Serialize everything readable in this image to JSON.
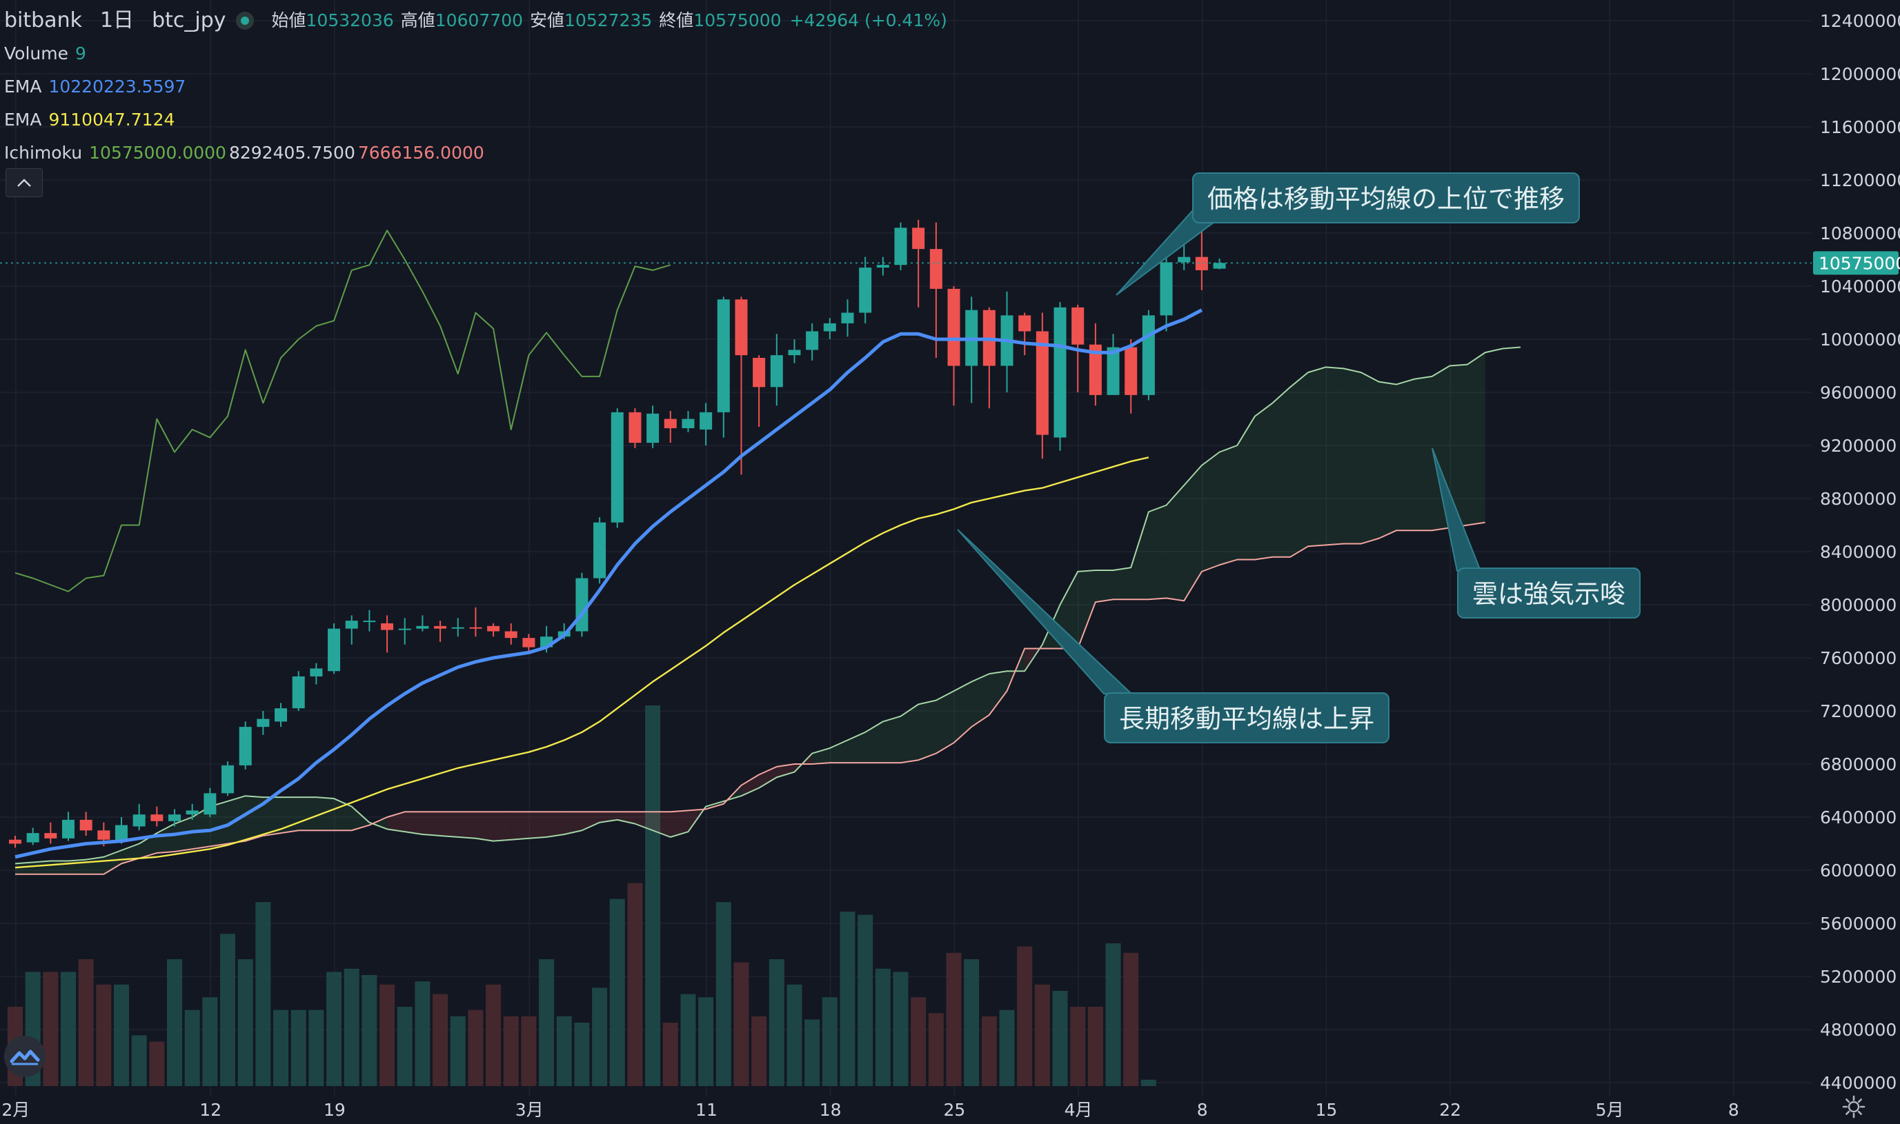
{
  "header": {
    "exchange": "bitbank",
    "interval": "1日",
    "symbol": "btc_jpy",
    "ohlc": [
      {
        "label": "始値",
        "value": "10532036"
      },
      {
        "label": "高値",
        "value": "10607700"
      },
      {
        "label": "安値",
        "value": "10527235"
      },
      {
        "label": "終値",
        "value": "10575000"
      }
    ],
    "change": "+42964 (+0.41%)"
  },
  "indicators": [
    {
      "name": "Volume",
      "values": [
        "9"
      ],
      "colors": [
        "#26a69a"
      ]
    },
    {
      "name": "EMA",
      "values": [
        "10220223.5597"
      ],
      "colors": [
        "#4d8ef5"
      ]
    },
    {
      "name": "EMA",
      "values": [
        "9110047.7124"
      ],
      "colors": [
        "#f3e94b"
      ]
    },
    {
      "name": "Ichimoku",
      "values": [
        "10575000.0000",
        "8292405.7500",
        "7666156.0000"
      ],
      "colors": [
        "#6ab04c",
        "#d1d4dc",
        "#f08080"
      ]
    }
  ],
  "colors": {
    "up": "#26a69a",
    "down": "#ef5350",
    "ema_fast": "#4d8ef5",
    "ema_slow": "#f3e94b",
    "lagging": "#5f9e4a",
    "span_a": "#a5d6a7",
    "span_b": "#f3a6a0",
    "background": "#131722",
    "grid": "#1f2330",
    "callout": "#1f5c6a"
  },
  "annotations": [
    {
      "text": "価格は移動平均線の上位で推移"
    },
    {
      "text": "雲は強気示唆"
    },
    {
      "text": "長期移動平均線は上昇"
    }
  ],
  "chart_data": {
    "type": "candlestick",
    "price_axis": {
      "min": 4400000,
      "max": 12400000,
      "tick_labels": [
        "12400000",
        "12000000",
        "11600000",
        "11200000",
        "10800000",
        "10400000",
        "10000000",
        "9600000",
        "9200000",
        "8800000",
        "8400000",
        "8000000",
        "7600000",
        "7200000",
        "6800000",
        "6400000",
        "6000000",
        "5600000",
        "5200000",
        "4800000",
        "4400000"
      ],
      "last_price_label": "10575000",
      "last_price": 10575000
    },
    "time_axis": {
      "labels": [
        "2月",
        "12",
        "19",
        "3月",
        "11",
        "18",
        "25",
        "4月",
        "8",
        "15",
        "22",
        "5月",
        "8"
      ],
      "label_day_index": [
        0,
        11,
        18,
        29,
        39,
        46,
        53,
        60,
        67,
        74,
        81,
        90,
        97
      ],
      "first_day": "2021-02-01",
      "visible_days_before_first": 6,
      "visible_days_total": 104
    },
    "candles": [
      [
        6230000,
        6200000,
        6260000,
        6170000
      ],
      [
        6210000,
        6280000,
        6320000,
        6190000
      ],
      [
        6280000,
        6240000,
        6360000,
        6200000
      ],
      [
        6240000,
        6380000,
        6440000,
        6220000
      ],
      [
        6380000,
        6300000,
        6440000,
        6260000
      ],
      [
        6300000,
        6230000,
        6360000,
        6180000
      ],
      [
        6230000,
        6340000,
        6400000,
        6200000
      ],
      [
        6330000,
        6420000,
        6500000,
        6300000
      ],
      [
        6420000,
        6370000,
        6480000,
        6330000
      ],
      [
        6370000,
        6420000,
        6460000,
        6330000
      ],
      [
        6420000,
        6450000,
        6500000,
        6380000
      ],
      [
        6420000,
        6580000,
        6620000,
        6400000
      ],
      [
        6580000,
        6790000,
        6820000,
        6560000
      ],
      [
        6790000,
        7080000,
        7120000,
        6760000
      ],
      [
        7080000,
        7140000,
        7200000,
        7020000
      ],
      [
        7120000,
        7220000,
        7260000,
        7080000
      ],
      [
        7220000,
        7460000,
        7500000,
        7200000
      ],
      [
        7460000,
        7520000,
        7560000,
        7400000
      ],
      [
        7500000,
        7820000,
        7860000,
        7480000
      ],
      [
        7820000,
        7880000,
        7920000,
        7700000
      ],
      [
        7880000,
        7880000,
        7960000,
        7800000
      ],
      [
        7860000,
        7810000,
        7920000,
        7640000
      ],
      [
        7810000,
        7820000,
        7900000,
        7700000
      ],
      [
        7820000,
        7840000,
        7920000,
        7800000
      ],
      [
        7840000,
        7820000,
        7880000,
        7720000
      ],
      [
        7820000,
        7830000,
        7900000,
        7760000
      ],
      [
        7830000,
        7820000,
        7980000,
        7760000
      ],
      [
        7840000,
        7800000,
        7860000,
        7760000
      ],
      [
        7800000,
        7750000,
        7860000,
        7700000
      ],
      [
        7750000,
        7680000,
        7780000,
        7640000
      ],
      [
        7680000,
        7760000,
        7840000,
        7640000
      ],
      [
        7760000,
        7800000,
        7860000,
        7740000
      ],
      [
        7800000,
        8200000,
        8240000,
        7760000
      ],
      [
        8200000,
        8620000,
        8660000,
        8160000
      ],
      [
        8620000,
        9450000,
        9480000,
        8580000
      ],
      [
        9450000,
        9220000,
        9480000,
        9180000
      ],
      [
        9220000,
        9440000,
        9500000,
        9180000
      ],
      [
        9400000,
        9330000,
        9460000,
        9220000
      ],
      [
        9330000,
        9400000,
        9460000,
        9300000
      ],
      [
        9320000,
        9450000,
        9520000,
        9200000
      ],
      [
        9450000,
        10300000,
        10320000,
        9260000
      ],
      [
        10300000,
        9880000,
        10320000,
        8980000
      ],
      [
        9860000,
        9640000,
        9880000,
        9340000
      ],
      [
        9640000,
        9880000,
        10040000,
        9500000
      ],
      [
        9880000,
        9920000,
        10000000,
        9820000
      ],
      [
        9920000,
        10060000,
        10120000,
        9840000
      ],
      [
        10060000,
        10120000,
        10160000,
        10000000
      ],
      [
        10120000,
        10200000,
        10300000,
        10020000
      ],
      [
        10200000,
        10540000,
        10620000,
        10120000
      ],
      [
        10540000,
        10560000,
        10620000,
        10480000
      ],
      [
        10560000,
        10840000,
        10880000,
        10520000
      ],
      [
        10840000,
        10680000,
        10900000,
        10240000
      ],
      [
        10680000,
        10380000,
        10880000,
        9860000
      ],
      [
        10380000,
        9800000,
        10400000,
        9500000
      ],
      [
        9800000,
        10220000,
        10320000,
        9520000
      ],
      [
        10220000,
        9800000,
        10240000,
        9480000
      ],
      [
        9800000,
        10180000,
        10360000,
        9600000
      ],
      [
        10180000,
        10060000,
        10200000,
        9880000
      ],
      [
        10060000,
        9280000,
        10200000,
        9100000
      ],
      [
        9260000,
        10240000,
        10280000,
        9160000
      ],
      [
        10240000,
        9960000,
        10260000,
        9600000
      ],
      [
        9960000,
        9580000,
        10120000,
        9500000
      ],
      [
        9580000,
        9940000,
        10040000,
        9620000
      ],
      [
        9940000,
        9580000,
        10000000,
        9440000
      ],
      [
        9580000,
        10180000,
        10220000,
        9540000
      ],
      [
        10180000,
        10580000,
        10620000,
        10060000
      ],
      [
        10580000,
        10620000,
        10760000,
        10520000
      ],
      [
        10620000,
        10520000,
        10840000,
        10370000
      ],
      [
        10532036,
        10575000,
        10607700,
        10527235
      ]
    ],
    "volume": [
      25,
      36,
      36,
      36,
      40,
      32,
      32,
      16,
      14,
      40,
      24,
      28,
      48,
      40,
      58,
      24,
      24,
      24,
      36,
      37,
      35,
      32,
      25,
      33,
      29,
      22,
      24,
      32,
      22,
      22,
      40,
      22,
      20,
      31,
      59,
      64,
      120,
      20,
      29,
      28,
      58,
      39,
      22,
      40,
      32,
      21,
      28,
      55,
      54,
      37,
      36,
      28,
      23,
      42,
      40,
      22,
      24,
      44,
      32,
      30,
      25,
      25,
      45,
      42,
      2
    ],
    "ema_fast": [
      6100000,
      6130000,
      6160000,
      6180000,
      6200000,
      6210000,
      6220000,
      6240000,
      6260000,
      6270000,
      6290000,
      6300000,
      6340000,
      6420000,
      6500000,
      6600000,
      6690000,
      6810000,
      6910000,
      7020000,
      7140000,
      7240000,
      7330000,
      7410000,
      7470000,
      7530000,
      7570000,
      7600000,
      7620000,
      7640000,
      7680000,
      7770000,
      7930000,
      8110000,
      8300000,
      8460000,
      8590000,
      8700000,
      8800000,
      8900000,
      9000000,
      9120000,
      9220000,
      9320000,
      9420000,
      9520000,
      9620000,
      9750000,
      9860000,
      9980000,
      10040000,
      10040000,
      10000000,
      10000000,
      10000000,
      10000000,
      9990000,
      9970000,
      9960000,
      9950000,
      9920000,
      9900000,
      9900000,
      9950000,
      10030000,
      10100000,
      10150000,
      10220000
    ],
    "ema_slow": [
      6020000,
      6030000,
      6040000,
      6050000,
      6060000,
      6070000,
      6080000,
      6090000,
      6100000,
      6120000,
      6140000,
      6160000,
      6190000,
      6230000,
      6270000,
      6310000,
      6360000,
      6410000,
      6460000,
      6510000,
      6560000,
      6610000,
      6650000,
      6690000,
      6730000,
      6770000,
      6800000,
      6830000,
      6860000,
      6890000,
      6930000,
      6980000,
      7040000,
      7120000,
      7220000,
      7320000,
      7420000,
      7510000,
      7600000,
      7690000,
      7790000,
      7880000,
      7970000,
      8060000,
      8150000,
      8230000,
      8310000,
      8390000,
      8470000,
      8540000,
      8600000,
      8650000,
      8680000,
      8720000,
      8770000,
      8800000,
      8830000,
      8860000,
      8880000,
      8920000,
      8960000,
      9000000,
      9040000,
      9080000,
      9110000
    ],
    "lagging": [
      8240000,
      8200000,
      8150000,
      8100000,
      8200000,
      8220000,
      8600000,
      8600000,
      9400000,
      9150000,
      9320000,
      9260000,
      9420000,
      9920000,
      9520000,
      9860000,
      10000000,
      10100000,
      10140000,
      10520000,
      10560000,
      10820000,
      10600000,
      10360000,
      10100000,
      9740000,
      10200000,
      10080000,
      9320000,
      9880000,
      10050000,
      9880000,
      9720000,
      9720000,
      10220000,
      10550000,
      10520000,
      10560000
    ],
    "span_a": [
      6050000,
      6060000,
      6070000,
      6070000,
      6080000,
      6100000,
      6150000,
      6200000,
      6280000,
      6350000,
      6400000,
      6480000,
      6520000,
      6560000,
      6550000,
      6550000,
      6550000,
      6550000,
      6540000,
      6480000,
      6360000,
      6310000,
      6290000,
      6270000,
      6260000,
      6250000,
      6240000,
      6220000,
      6230000,
      6240000,
      6250000,
      6270000,
      6300000,
      6360000,
      6380000,
      6350000,
      6300000,
      6250000,
      6290000,
      6480000,
      6520000,
      6560000,
      6620000,
      6700000,
      6740000,
      6880000,
      6920000,
      6980000,
      7040000,
      7120000,
      7160000,
      7250000,
      7280000,
      7350000,
      7420000,
      7480000,
      7500000,
      7500000,
      7700000,
      8000000,
      8250000,
      8260000,
      8260000,
      8280000,
      8700000,
      8750000,
      8900000,
      9050000,
      9150000,
      9200000,
      9420000,
      9520000,
      9640000,
      9750000,
      9790000,
      9780000,
      9750000,
      9680000,
      9660000,
      9700000,
      9720000,
      9800000,
      9810000,
      9900000,
      9930000,
      9940000
    ],
    "span_b": [
      5970000,
      5970000,
      5970000,
      5970000,
      5970000,
      5970000,
      6050000,
      6090000,
      6130000,
      6140000,
      6160000,
      6180000,
      6200000,
      6220000,
      6260000,
      6280000,
      6300000,
      6300000,
      6300000,
      6300000,
      6340000,
      6400000,
      6440000,
      6440000,
      6440000,
      6440000,
      6440000,
      6440000,
      6440000,
      6440000,
      6440000,
      6440000,
      6440000,
      6440000,
      6440000,
      6440000,
      6440000,
      6440000,
      6450000,
      6460000,
      6500000,
      6640000,
      6720000,
      6780000,
      6800000,
      6800000,
      6810000,
      6810000,
      6810000,
      6810000,
      6810000,
      6830000,
      6880000,
      6960000,
      7080000,
      7170000,
      7350000,
      7670000,
      7670000,
      7670000,
      7670000,
      8020000,
      8040000,
      8040000,
      8040000,
      8050000,
      8030000,
      8250000,
      8300000,
      8340000,
      8340000,
      8360000,
      8360000,
      8440000,
      8450000,
      8460000,
      8460000,
      8500000,
      8560000,
      8560000,
      8560000,
      8580000,
      8600000,
      8620000
    ]
  }
}
